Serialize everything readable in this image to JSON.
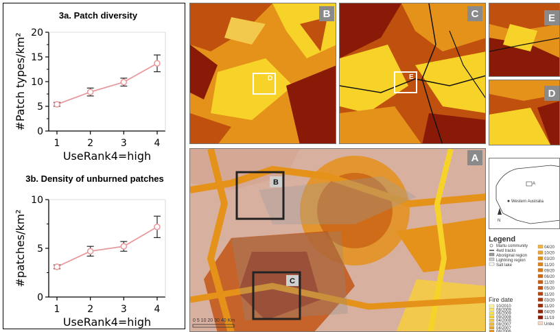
{
  "chart_data": [
    {
      "type": "line",
      "title": "3a.  Patch diversity",
      "xlabel": "UseRank4=high",
      "ylabel": "#Patch types/km²",
      "x": [
        1,
        2,
        3,
        4
      ],
      "values": [
        5.4,
        7.9,
        9.9,
        13.7
      ],
      "error": [
        0.4,
        0.8,
        0.8,
        1.7
      ],
      "ylim": [
        0,
        20
      ],
      "yticks": [
        0,
        5,
        10,
        15,
        20
      ],
      "color": "#e8999c"
    },
    {
      "type": "line",
      "title": "3b.  Density of unburned patches",
      "xlabel": "UseRank4=high",
      "ylabel": "#patches/km²",
      "x": [
        1,
        2,
        3,
        4
      ],
      "values": [
        3.1,
        4.7,
        5.2,
        7.2
      ],
      "error": [
        0.2,
        0.5,
        0.5,
        1.1
      ],
      "ylim": [
        0,
        10
      ],
      "yticks": [
        0,
        5,
        10
      ],
      "color": "#e8999c"
    }
  ],
  "maps": {
    "panel_labels": [
      "B",
      "C",
      "E",
      "D",
      "A"
    ],
    "inset_labels": [
      "D",
      "E"
    ],
    "overview_labels": [
      "B",
      "C"
    ],
    "locator_text": "Western Australia",
    "scale_text": "0  5 10  20  30  40 Km",
    "legend": {
      "title": "Legend",
      "items": [
        "Martu community",
        "4wd tracks",
        "Aboriginal region",
        "Lightning region",
        "Salt lake"
      ],
      "fire_title": "Fire date",
      "fire_dates_left": [
        "10/2010",
        "08/2009",
        "06/2009",
        "09/2008",
        "04/2008",
        "08/2007",
        "04/2007",
        "08/2006"
      ],
      "fire_dates_right": [
        "04/20",
        "10/20",
        "03/20",
        "11/20",
        "09/20",
        "06/20",
        "11/20",
        "05/20",
        "11/20",
        "03/20",
        "11/20",
        "04/20",
        "11/19",
        "Unbu"
      ],
      "colors": {
        "dark": "#8a1a08",
        "mid": "#c0500e",
        "orange": "#e5921b",
        "yellow": "#f7d32a",
        "pale": "#d8b0a0"
      }
    }
  }
}
